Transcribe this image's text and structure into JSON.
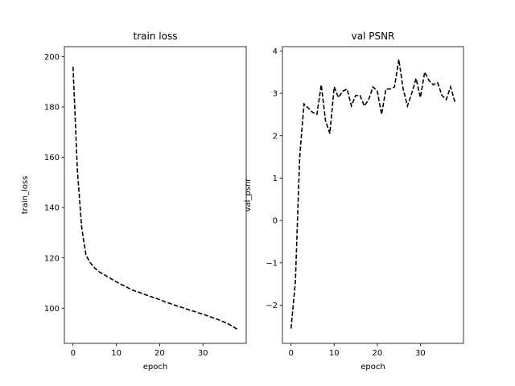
{
  "chart_data": [
    {
      "type": "line",
      "title": "train loss",
      "xlabel": "epoch",
      "ylabel": "train_loss",
      "xlim": [
        -2,
        40
      ],
      "ylim": [
        86,
        204
      ],
      "xticks": [
        0,
        10,
        20,
        30
      ],
      "yticks": [
        100,
        120,
        140,
        160,
        180,
        200
      ],
      "grid": false,
      "line_style": "dashed",
      "line_color": "#000000",
      "series": [
        {
          "x": [
            0,
            1,
            2,
            3,
            4,
            5,
            6,
            7,
            8,
            9,
            10,
            11,
            12,
            13,
            14,
            15,
            16,
            17,
            18,
            19,
            20,
            21,
            22,
            23,
            24,
            25,
            26,
            27,
            28,
            29,
            30,
            31,
            32,
            33,
            34,
            35,
            36,
            37,
            38
          ],
          "values": [
            196,
            155,
            132,
            121,
            118,
            116,
            114.5,
            113.5,
            112.5,
            111.5,
            110.5,
            109.5,
            108.8,
            107.8,
            107,
            106.5,
            105.8,
            105.2,
            104.6,
            104,
            103.4,
            102.7,
            102.1,
            101.5,
            100.9,
            100.4,
            99.8,
            99.2,
            98.7,
            98.1,
            97.6,
            97,
            96.4,
            95.8,
            95.1,
            94.4,
            93.6,
            92.6,
            91.5
          ]
        }
      ]
    },
    {
      "type": "line",
      "title": "val PSNR",
      "xlabel": "epoch",
      "ylabel": "val_psnr",
      "xlim": [
        -2,
        40
      ],
      "ylim": [
        -2.9,
        4.1
      ],
      "xticks": [
        0,
        10,
        20,
        30
      ],
      "yticks": [
        -2,
        -1,
        0,
        1,
        2,
        3,
        4
      ],
      "grid": false,
      "line_style": "dashed",
      "line_color": "#000000",
      "series": [
        {
          "x": [
            0,
            1,
            2,
            3,
            4,
            5,
            6,
            7,
            8,
            9,
            10,
            11,
            12,
            13,
            14,
            15,
            16,
            17,
            18,
            19,
            20,
            21,
            22,
            23,
            24,
            25,
            26,
            27,
            28,
            29,
            30,
            31,
            32,
            33,
            34,
            35,
            36,
            37,
            38
          ],
          "values": [
            -2.55,
            -1.45,
            1.5,
            2.75,
            2.65,
            2.55,
            2.5,
            3.2,
            2.35,
            2.05,
            3.15,
            2.9,
            3.05,
            3.1,
            2.7,
            2.95,
            2.95,
            2.7,
            2.85,
            3.15,
            3.05,
            2.5,
            3.1,
            3.1,
            3.15,
            3.8,
            3.1,
            2.7,
            3.0,
            3.35,
            2.9,
            3.5,
            3.3,
            3.2,
            3.25,
            2.95,
            2.85,
            3.15,
            2.8
          ]
        }
      ]
    }
  ]
}
